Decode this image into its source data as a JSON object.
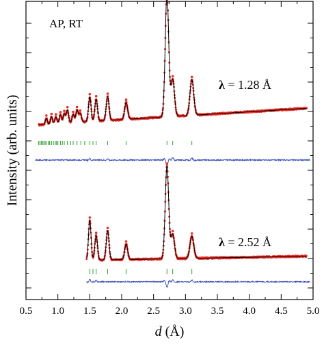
{
  "chart_data": {
    "type": "line",
    "title": "",
    "annotation": "AP, RT",
    "xlabel_italic": "d",
    "xlabel_rest": " (Å)",
    "ylabel": "Intensity (arb. units)",
    "xlim": [
      0.5,
      5.0
    ],
    "x_ticks": [
      0.5,
      1.0,
      1.5,
      2.0,
      2.5,
      3.0,
      3.5,
      4.0,
      4.5,
      5.0
    ],
    "x_tick_labels": [
      "0.5",
      "1.0",
      "1.5",
      "2.0",
      "2.5",
      "3.0",
      "3.5",
      "4.0",
      "4.5",
      "5.0"
    ],
    "y_ticks_unlabeled": true,
    "grid": false,
    "colors": {
      "observed": "#e8302a",
      "calculated": "#000000",
      "bragg": "#2e9d2e",
      "difference": "#3347b8"
    },
    "panels": [
      {
        "label_symbol": "λ",
        "label_value": " = 1.28 Å",
        "d_range": [
          0.7,
          4.9
        ],
        "background": {
          "at_start": 0.23,
          "at_1_5": 0.34,
          "at_end": 0.77
        },
        "peaks": [
          {
            "d": 0.82,
            "height": 0.2
          },
          {
            "d": 0.9,
            "height": 0.24
          },
          {
            "d": 0.97,
            "height": 0.22
          },
          {
            "d": 1.04,
            "height": 0.28
          },
          {
            "d": 1.1,
            "height": 0.3
          },
          {
            "d": 1.15,
            "height": 0.42
          },
          {
            "d": 1.24,
            "height": 0.26
          },
          {
            "d": 1.3,
            "height": 0.4
          },
          {
            "d": 1.35,
            "height": 0.28
          },
          {
            "d": 1.5,
            "height": 0.8
          },
          {
            "d": 1.6,
            "height": 0.72
          },
          {
            "d": 1.78,
            "height": 0.78
          },
          {
            "d": 2.07,
            "height": 0.55
          },
          {
            "d": 2.71,
            "height": 4.0
          },
          {
            "d": 2.8,
            "height": 1.2
          },
          {
            "d": 3.1,
            "height": 1.16
          }
        ],
        "bragg_ticks": [
          0.7,
          0.72,
          0.74,
          0.76,
          0.78,
          0.8,
          0.82,
          0.85,
          0.87,
          0.9,
          0.93,
          0.96,
          0.98,
          1.0,
          1.04,
          1.07,
          1.1,
          1.15,
          1.2,
          1.24,
          1.3,
          1.36,
          1.42,
          1.5,
          1.55,
          1.6,
          1.78,
          2.07,
          2.71,
          2.8,
          3.1
        ],
        "difference_features": [
          {
            "d": 1.5,
            "amplitude": 0.06
          },
          {
            "d": 1.78,
            "amplitude": 0.05
          },
          {
            "d": 2.71,
            "amplitude": -0.22
          },
          {
            "d": 2.8,
            "amplitude": 0.08
          },
          {
            "d": 3.1,
            "amplitude": 0.07
          }
        ]
      },
      {
        "label_symbol": "λ",
        "label_value": " = 2.52 Å",
        "d_range": [
          1.45,
          4.9
        ],
        "background": {
          "at_start": 0.1,
          "at_1_5": 0.1,
          "at_end": 0.23
        },
        "peaks": [
          {
            "d": 1.5,
            "height": 1.3
          },
          {
            "d": 1.6,
            "height": 0.8
          },
          {
            "d": 1.78,
            "height": 0.95
          },
          {
            "d": 2.07,
            "height": 0.5
          },
          {
            "d": 2.71,
            "height": 3.0
          },
          {
            "d": 2.8,
            "height": 0.8
          },
          {
            "d": 3.1,
            "height": 0.72
          }
        ],
        "bragg_ticks": [
          1.5,
          1.55,
          1.6,
          1.78,
          2.07,
          2.71,
          2.8,
          3.1
        ],
        "difference_features": [
          {
            "d": 1.5,
            "amplitude": 0.1
          },
          {
            "d": 1.6,
            "amplitude": 0.05
          },
          {
            "d": 2.71,
            "amplitude": -0.2
          },
          {
            "d": 2.8,
            "amplitude": 0.06
          },
          {
            "d": 3.1,
            "amplitude": 0.06
          }
        ]
      }
    ]
  }
}
